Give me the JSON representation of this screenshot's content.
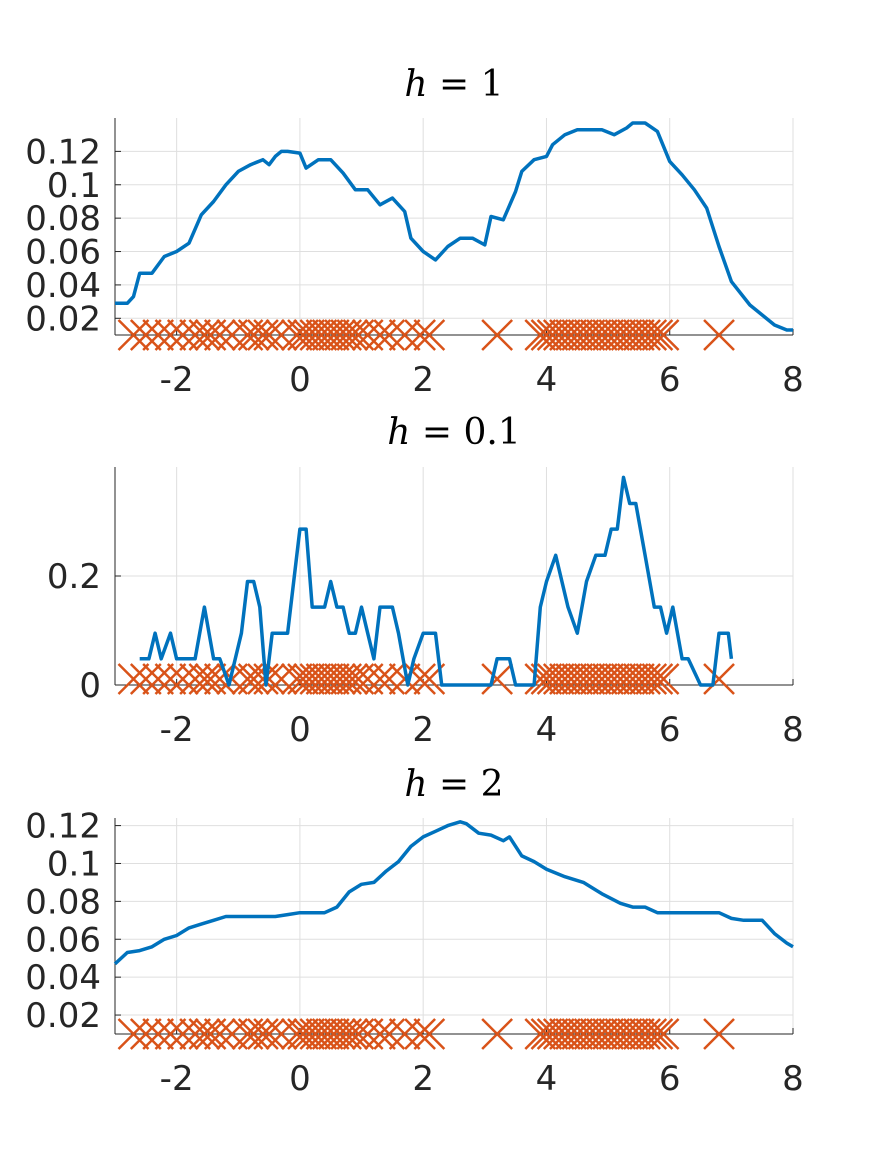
{
  "chart_data": [
    {
      "type": "line",
      "title": "h = 1",
      "title_parts": {
        "var": "h",
        "eq": "=",
        "val": "1"
      },
      "xlabel": "",
      "ylabel": "",
      "xlim": [
        -3,
        8
      ],
      "ylim": [
        0.01,
        0.14
      ],
      "xticks": [
        -2,
        0,
        2,
        4,
        6,
        8
      ],
      "xtick_labels": [
        "-2",
        "0",
        "2",
        "4",
        "6",
        "8"
      ],
      "yticks": [
        0.02,
        0.04,
        0.06,
        0.08,
        0.1,
        0.12
      ],
      "ytick_labels": [
        "0.02",
        "0.04",
        "0.06",
        "0.08",
        "0.1",
        "0.12"
      ],
      "grid": true,
      "series": [
        {
          "x": [
            -3,
            -2.8,
            -2.7,
            -2.6,
            -2.4,
            -2.2,
            -2.0,
            -1.8,
            -1.6,
            -1.4,
            -1.2,
            -1.0,
            -0.8,
            -0.6,
            -0.5,
            -0.4,
            -0.3,
            -0.2,
            0.0,
            0.1,
            0.3,
            0.5,
            0.7,
            0.9,
            1.1,
            1.3,
            1.5,
            1.7,
            1.8,
            2.0,
            2.2,
            2.4,
            2.6,
            2.8,
            3.0,
            3.1,
            3.3,
            3.5,
            3.6,
            3.8,
            4.0,
            4.1,
            4.3,
            4.5,
            4.7,
            4.9,
            5.1,
            5.3,
            5.4,
            5.6,
            5.8,
            6.0,
            6.2,
            6.4,
            6.6,
            6.8,
            7.0,
            7.3,
            7.5,
            7.7,
            7.9,
            8.0
          ],
          "y": [
            0.029,
            0.029,
            0.033,
            0.047,
            0.047,
            0.057,
            0.06,
            0.065,
            0.082,
            0.09,
            0.1,
            0.108,
            0.112,
            0.115,
            0.112,
            0.117,
            0.12,
            0.12,
            0.119,
            0.11,
            0.115,
            0.115,
            0.107,
            0.097,
            0.097,
            0.088,
            0.092,
            0.084,
            0.068,
            0.06,
            0.055,
            0.063,
            0.068,
            0.068,
            0.064,
            0.081,
            0.079,
            0.096,
            0.108,
            0.115,
            0.117,
            0.124,
            0.13,
            0.133,
            0.133,
            0.133,
            0.13,
            0.134,
            0.137,
            0.137,
            0.132,
            0.114,
            0.106,
            0.097,
            0.086,
            0.063,
            0.042,
            0.028,
            0.022,
            0.016,
            0.013,
            0.013
          ],
          "color": "#0072BD"
        }
      ],
      "samples": {
        "x": [
          -2.7,
          -2.5,
          -2.3,
          -2.1,
          -1.9,
          -1.7,
          -1.55,
          -1.45,
          -1.3,
          -1.1,
          -0.85,
          -0.75,
          -0.6,
          -0.5,
          -0.3,
          -0.05,
          0.05,
          0.15,
          0.25,
          0.35,
          0.45,
          0.55,
          0.65,
          0.75,
          0.85,
          0.95,
          1.1,
          1.3,
          1.45,
          1.7,
          1.95,
          2.1,
          3.2,
          3.9,
          4.0,
          4.1,
          4.2,
          4.3,
          4.4,
          4.5,
          4.6,
          4.7,
          4.8,
          4.9,
          5.0,
          5.1,
          5.2,
          5.3,
          5.4,
          5.5,
          5.6,
          5.7,
          5.8,
          5.9,
          6.8
        ],
        "marker": "x",
        "color": "#D95319"
      }
    },
    {
      "type": "line",
      "title": "h = 0.1",
      "title_parts": {
        "var": "h",
        "eq": "=",
        "val": "0.1"
      },
      "xlabel": "",
      "ylabel": "",
      "xlim": [
        -3,
        8
      ],
      "ylim": [
        0,
        0.4
      ],
      "xticks": [
        -2,
        0,
        2,
        4,
        6,
        8
      ],
      "xtick_labels": [
        "-2",
        "0",
        "2",
        "4",
        "6",
        "8"
      ],
      "yticks": [
        0,
        0.2
      ],
      "ytick_labels": [
        "0",
        "0.2"
      ],
      "grid": true,
      "series": [
        {
          "x": [
            -2.6,
            -2.45,
            -2.35,
            -2.25,
            -2.1,
            -2.0,
            -1.9,
            -1.7,
            -1.55,
            -1.4,
            -1.3,
            -1.15,
            -0.95,
            -0.85,
            -0.75,
            -0.65,
            -0.55,
            -0.45,
            -0.35,
            -0.2,
            -0.1,
            0.0,
            0.1,
            0.2,
            0.3,
            0.4,
            0.5,
            0.6,
            0.7,
            0.8,
            0.9,
            1.0,
            1.1,
            1.2,
            1.3,
            1.4,
            1.5,
            1.6,
            1.75,
            1.85,
            2.0,
            2.2,
            2.3,
            2.5,
            2.7,
            2.9,
            3.1,
            3.2,
            3.4,
            3.5,
            3.7,
            3.8,
            3.9,
            4.0,
            4.15,
            4.35,
            4.5,
            4.65,
            4.8,
            4.95,
            5.05,
            5.15,
            5.25,
            5.35,
            5.45,
            5.6,
            5.75,
            5.85,
            5.95,
            6.05,
            6.2,
            6.3,
            6.5,
            6.7,
            6.8,
            6.95,
            7.0
          ],
          "y": [
            0.048,
            0.048,
            0.095,
            0.048,
            0.095,
            0.048,
            0.048,
            0.048,
            0.143,
            0.048,
            0.048,
            0.0,
            0.095,
            0.19,
            0.19,
            0.143,
            0.0,
            0.095,
            0.095,
            0.095,
            0.19,
            0.286,
            0.286,
            0.143,
            0.143,
            0.143,
            0.19,
            0.143,
            0.143,
            0.095,
            0.095,
            0.143,
            0.095,
            0.048,
            0.143,
            0.143,
            0.143,
            0.095,
            0.0,
            0.048,
            0.095,
            0.095,
            0.0,
            0.0,
            0.0,
            0.0,
            0.0,
            0.048,
            0.048,
            0.0,
            0.0,
            0.0,
            0.143,
            0.19,
            0.238,
            0.143,
            0.095,
            0.19,
            0.238,
            0.238,
            0.286,
            0.286,
            0.381,
            0.333,
            0.333,
            0.238,
            0.143,
            0.143,
            0.095,
            0.143,
            0.048,
            0.048,
            0.0,
            0.0,
            0.095,
            0.095,
            0.048
          ],
          "color": "#0072BD"
        }
      ],
      "samples": {
        "x": [
          -2.7,
          -2.5,
          -2.3,
          -2.1,
          -1.9,
          -1.7,
          -1.55,
          -1.45,
          -1.3,
          -1.1,
          -0.85,
          -0.75,
          -0.6,
          -0.5,
          -0.3,
          -0.05,
          0.05,
          0.15,
          0.25,
          0.35,
          0.45,
          0.55,
          0.65,
          0.75,
          0.85,
          0.95,
          1.1,
          1.3,
          1.45,
          1.7,
          1.95,
          2.1,
          3.2,
          3.9,
          4.0,
          4.1,
          4.2,
          4.3,
          4.4,
          4.5,
          4.6,
          4.7,
          4.8,
          4.9,
          5.0,
          5.1,
          5.2,
          5.3,
          5.4,
          5.5,
          5.6,
          5.7,
          5.8,
          5.9,
          6.8
        ],
        "marker": "x",
        "color": "#D95319"
      }
    },
    {
      "type": "line",
      "title": "h = 2",
      "title_parts": {
        "var": "h",
        "eq": "=",
        "val": "2"
      },
      "xlabel": "",
      "ylabel": "",
      "xlim": [
        -3,
        8
      ],
      "ylim": [
        0.01,
        0.124
      ],
      "xticks": [
        -2,
        0,
        2,
        4,
        6,
        8
      ],
      "xtick_labels": [
        "-2",
        "0",
        "2",
        "4",
        "6",
        "8"
      ],
      "yticks": [
        0.02,
        0.04,
        0.06,
        0.08,
        0.1,
        0.12
      ],
      "ytick_labels": [
        "0.02",
        "0.04",
        "0.06",
        "0.08",
        "0.1",
        "0.12"
      ],
      "grid": true,
      "series": [
        {
          "x": [
            -3,
            -2.8,
            -2.6,
            -2.4,
            -2.2,
            -2.0,
            -1.8,
            -1.6,
            -1.4,
            -1.2,
            -1.0,
            -0.8,
            -0.6,
            -0.4,
            -0.2,
            0.0,
            0.2,
            0.4,
            0.6,
            0.8,
            1.0,
            1.2,
            1.4,
            1.6,
            1.8,
            2.0,
            2.2,
            2.4,
            2.6,
            2.7,
            2.9,
            3.1,
            3.3,
            3.4,
            3.6,
            3.8,
            4.0,
            4.3,
            4.6,
            4.9,
            5.2,
            5.4,
            5.6,
            5.8,
            6.0,
            6.3,
            6.6,
            6.8,
            7.0,
            7.2,
            7.5,
            7.7,
            7.9,
            8.0
          ],
          "y": [
            0.047,
            0.053,
            0.054,
            0.056,
            0.06,
            0.062,
            0.066,
            0.068,
            0.07,
            0.072,
            0.072,
            0.072,
            0.072,
            0.072,
            0.073,
            0.074,
            0.074,
            0.074,
            0.077,
            0.085,
            0.089,
            0.09,
            0.096,
            0.101,
            0.109,
            0.114,
            0.117,
            0.12,
            0.122,
            0.121,
            0.116,
            0.115,
            0.112,
            0.114,
            0.104,
            0.101,
            0.097,
            0.093,
            0.09,
            0.084,
            0.079,
            0.077,
            0.077,
            0.074,
            0.074,
            0.074,
            0.074,
            0.074,
            0.071,
            0.07,
            0.07,
            0.063,
            0.058,
            0.056
          ],
          "color": "#0072BD"
        }
      ],
      "samples": {
        "x": [
          -2.7,
          -2.5,
          -2.3,
          -2.1,
          -1.9,
          -1.7,
          -1.55,
          -1.45,
          -1.3,
          -1.1,
          -0.85,
          -0.75,
          -0.6,
          -0.5,
          -0.3,
          -0.05,
          0.05,
          0.15,
          0.25,
          0.35,
          0.45,
          0.55,
          0.65,
          0.75,
          0.85,
          0.95,
          1.1,
          1.3,
          1.45,
          1.7,
          1.95,
          2.1,
          3.2,
          3.9,
          4.0,
          4.1,
          4.2,
          4.3,
          4.4,
          4.5,
          4.6,
          4.7,
          4.8,
          4.9,
          5.0,
          5.1,
          5.2,
          5.3,
          5.4,
          5.5,
          5.6,
          5.7,
          5.8,
          5.9,
          6.8
        ],
        "marker": "x",
        "color": "#D95319"
      }
    }
  ]
}
